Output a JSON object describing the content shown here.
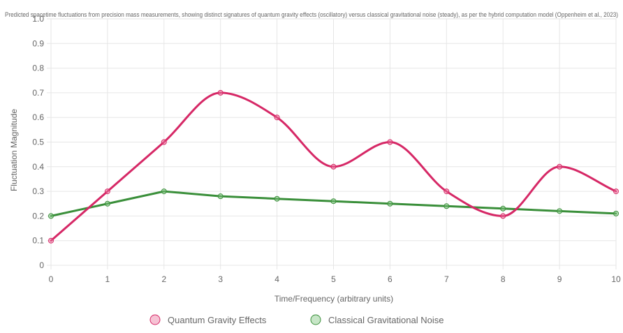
{
  "chart_data": {
    "type": "line",
    "title": "Predicted spacetime fluctuations from precision mass measurements, showing distinct signatures of quantum gravity effects (oscillatory) versus classical gravitational noise (steady), as per the hybrid computation model (Oppenheim et al., 2023)",
    "xlabel": "Time/Frequency (arbitrary units)",
    "ylabel": "Fluctuation Magnitude",
    "x": [
      0,
      1,
      2,
      3,
      4,
      5,
      6,
      7,
      8,
      9,
      10
    ],
    "x_tick_labels": [
      "0",
      "1",
      "2",
      "3",
      "4",
      "5",
      "6",
      "7",
      "8",
      "9",
      "10"
    ],
    "y_tick_labels": [
      "0",
      "0.1",
      "0.2",
      "0.3",
      "0.4",
      "0.5",
      "0.6",
      "0.7",
      "0.8",
      "0.9",
      "1.0"
    ],
    "xlim": [
      0,
      10
    ],
    "ylim": [
      0,
      1.0
    ],
    "grid": true,
    "legend_position": "bottom",
    "series": [
      {
        "name": "Quantum Gravity Effects",
        "values": [
          0.1,
          0.3,
          0.5,
          0.7,
          0.6,
          0.4,
          0.5,
          0.3,
          0.2,
          0.4,
          0.3
        ],
        "color": "#d62866",
        "fill": "rgba(236,120,160,0.45)",
        "curve": "smooth"
      },
      {
        "name": "Classical Gravitational Noise",
        "values": [
          0.2,
          0.25,
          0.3,
          0.28,
          0.27,
          0.26,
          0.25,
          0.24,
          0.23,
          0.22,
          0.21
        ],
        "color": "#3a8f3a",
        "fill": "rgba(130,200,130,0.45)",
        "curve": "straight"
      }
    ]
  }
}
